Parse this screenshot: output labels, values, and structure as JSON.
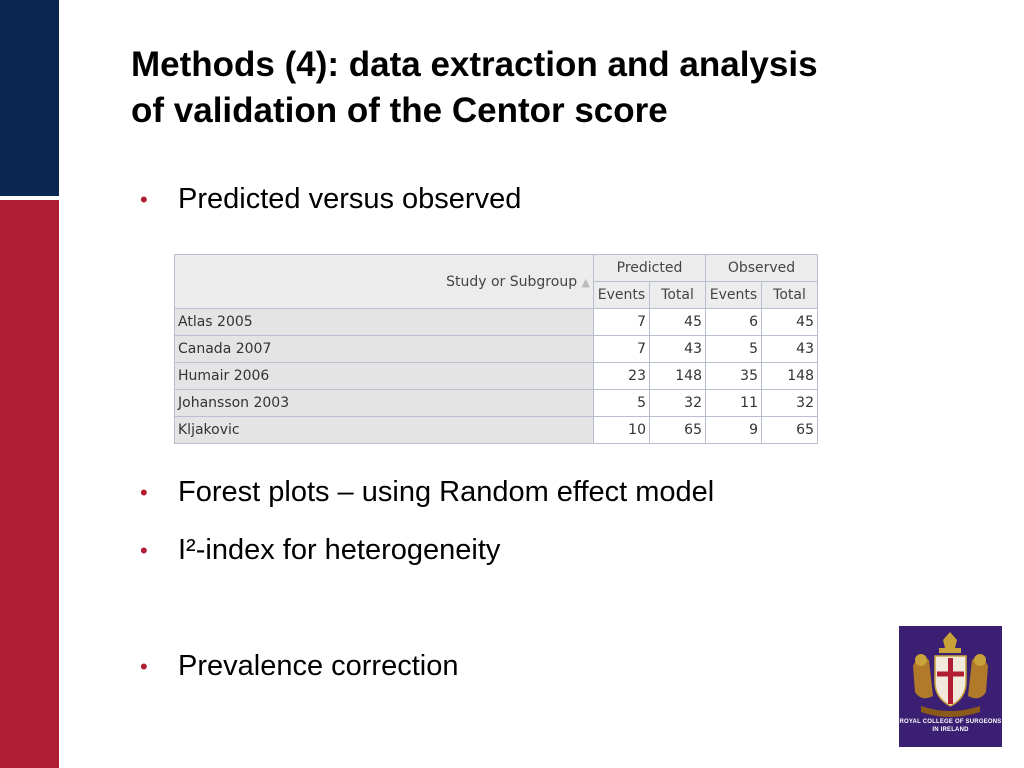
{
  "title": {
    "line1": "Methods (4): data extraction and analysis",
    "line2": "of validation of the Centor score"
  },
  "bullets": [
    "Predicted versus observed",
    "Forest plots – using Random effect model",
    "I²-index for heterogeneity",
    "Prevalence correction"
  ],
  "table": {
    "subgroup_header": "Study or Subgroup",
    "group_headers": [
      "Predicted",
      "Observed"
    ],
    "sub_headers": [
      "Events",
      "Total",
      "Events",
      "Total"
    ],
    "rows": [
      {
        "study": "Atlas 2005",
        "values": [
          "7",
          "45",
          "6",
          "45"
        ]
      },
      {
        "study": "Canada 2007",
        "values": [
          "7",
          "43",
          "5",
          "43"
        ]
      },
      {
        "study": "Humair 2006",
        "values": [
          "23",
          "148",
          "35",
          "148"
        ]
      },
      {
        "study": "Johansson 2003",
        "values": [
          "5",
          "32",
          "11",
          "32"
        ]
      },
      {
        "study": "Kljakovic",
        "values": [
          "10",
          "65",
          "9",
          "65"
        ]
      }
    ]
  },
  "logo": {
    "text_line1": "ROYAL COLLEGE OF SURGEONS",
    "text_line2": "IN IRELAND"
  },
  "colors": {
    "navy_bar": "#0b2650",
    "red_bar": "#b11e33",
    "logo_bg": "#3a1f72"
  }
}
